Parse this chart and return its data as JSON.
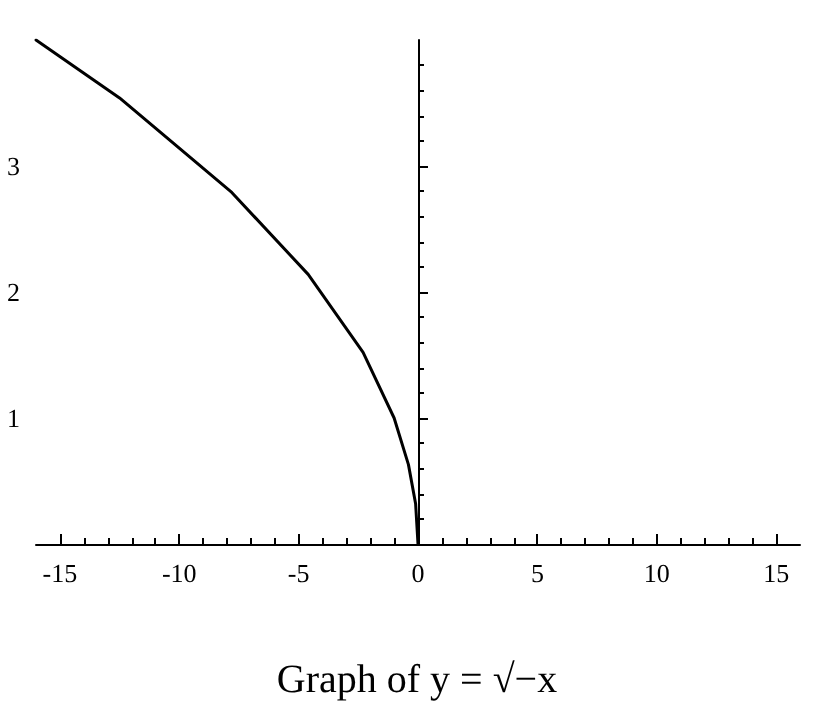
{
  "chart_data": {
    "type": "line",
    "title": "Graph of y = √−x",
    "x": [
      -16,
      -12.5,
      -7.8,
      -4.6,
      -2.3,
      -1,
      -0.4,
      -0.1,
      0
    ],
    "series": [
      {
        "color": "#000000",
        "values": [
          4,
          3.54,
          2.79,
          2.14,
          1.52,
          1,
          0.63,
          0.32,
          0
        ]
      }
    ],
    "xlim": [
      -16,
      16
    ],
    "xticks": [
      -15,
      -10,
      -5,
      0,
      5,
      10,
      15
    ],
    "ylim": [
      0,
      4
    ],
    "yticks": [
      1,
      2,
      3
    ],
    "marker": "none",
    "line_style": "solid"
  }
}
